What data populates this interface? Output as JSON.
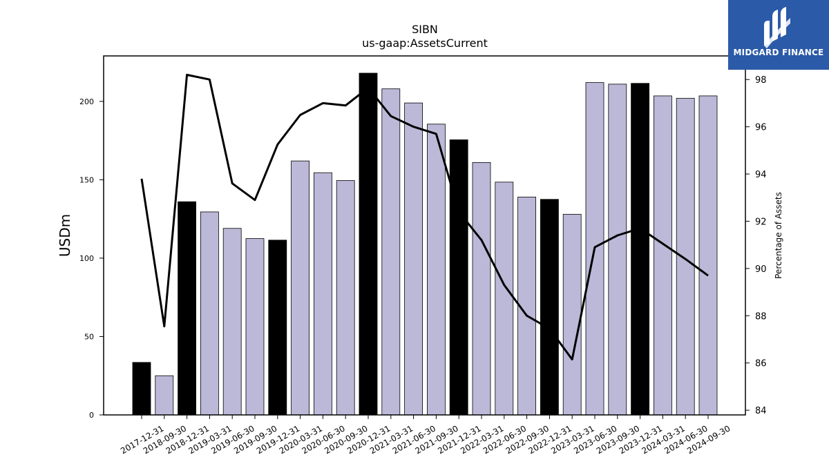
{
  "chart_data": {
    "type": "bar",
    "title": "SIBN",
    "subtitle": "us-gaap:AssetsCurrent",
    "ylabel": "USDm",
    "y2label": "Percentage of Assets",
    "ylim": [
      0,
      229
    ],
    "y2lim": [
      83.8,
      99.0
    ],
    "yticks": [
      0,
      50,
      100,
      150,
      200
    ],
    "y2ticks": [
      84,
      86,
      88,
      90,
      92,
      94,
      96,
      98
    ],
    "categories": [
      "2017-12-31",
      "2018-09-30",
      "2018-12-31",
      "2019-03-31",
      "2019-06-30",
      "2019-09-30",
      "2019-12-31",
      "2020-03-31",
      "2020-06-30",
      "2020-09-30",
      "2020-12-31",
      "2021-03-31",
      "2021-06-30",
      "2021-09-30",
      "2021-12-31",
      "2022-03-31",
      "2022-06-30",
      "2022-09-30",
      "2022-12-31",
      "2023-03-31",
      "2023-06-30",
      "2023-09-30",
      "2023-12-31",
      "2024-03-31",
      "2024-06-30",
      "2024-09-30"
    ],
    "series": [
      {
        "kind": "bar",
        "values": [
          33.5,
          25,
          136,
          129.5,
          119,
          112.5,
          111.5,
          162,
          154.5,
          149.5,
          218,
          208,
          199,
          185.5,
          175.5,
          161,
          148.5,
          139,
          137.5,
          128,
          212,
          211,
          211.5,
          203.5,
          202,
          203.5
        ],
        "annual": [
          true,
          false,
          true,
          false,
          false,
          false,
          true,
          false,
          false,
          false,
          true,
          false,
          false,
          false,
          true,
          false,
          false,
          false,
          true,
          false,
          false,
          false,
          true,
          false,
          false,
          false
        ]
      },
      {
        "kind": "line",
        "axis": "right",
        "values": [
          93.8,
          87.55,
          98.2,
          98.0,
          93.6,
          92.9,
          95.25,
          96.5,
          97.0,
          96.9,
          97.65,
          96.45,
          96.0,
          95.7,
          92.4,
          91.2,
          89.3,
          88.0,
          87.45,
          86.15,
          90.9,
          91.4,
          91.7,
          91.05,
          90.4,
          89.7
        ]
      }
    ],
    "colors": {
      "annual_bar": "#000000",
      "quarter_bar": "#bcb8d8",
      "line": "#000000"
    },
    "grid": false,
    "legend": "none"
  },
  "logo": {
    "text": "MIDGARD FINANCE",
    "background": "#2b5aa8"
  }
}
